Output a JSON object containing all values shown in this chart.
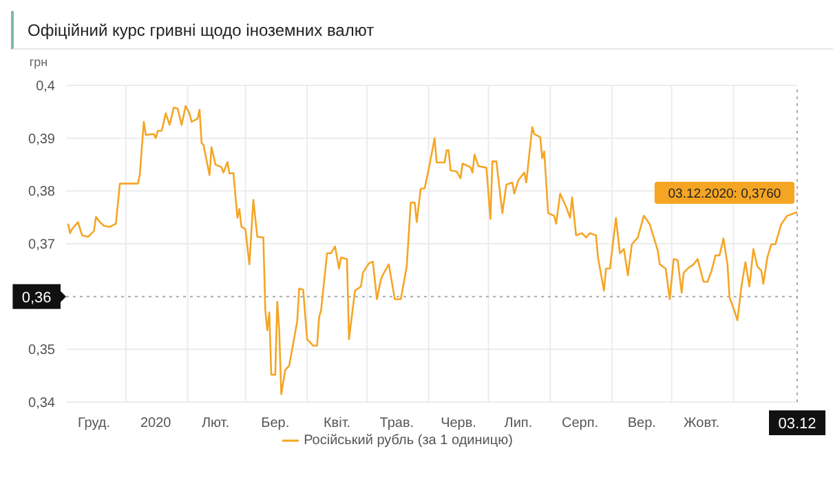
{
  "chart_data": {
    "type": "line",
    "title": "Офіційний курс гривні щодо іноземних валют",
    "ylabel": "грн",
    "legend": "bottom",
    "grid": true,
    "xlim": [
      "2019-12-02",
      "2020-12-03"
    ],
    "xticks": [
      {
        "value": "2019-12-16",
        "label": "Груд."
      },
      {
        "value": "2020-01-01",
        "label": null
      },
      {
        "value": "2020-01-16",
        "label": "2020"
      },
      {
        "value": "2020-02-01",
        "label": null
      },
      {
        "value": "2020-02-15",
        "label": "Лют."
      },
      {
        "value": "2020-03-01",
        "label": null
      },
      {
        "value": "2020-03-16",
        "label": "Бер."
      },
      {
        "value": "2020-04-01",
        "label": null
      },
      {
        "value": "2020-04-16",
        "label": "Квіт."
      },
      {
        "value": "2020-05-01",
        "label": null
      },
      {
        "value": "2020-05-16",
        "label": "Трав."
      },
      {
        "value": "2020-06-01",
        "label": null
      },
      {
        "value": "2020-06-16",
        "label": "Черв."
      },
      {
        "value": "2020-07-01",
        "label": null
      },
      {
        "value": "2020-07-16",
        "label": "Лип."
      },
      {
        "value": "2020-08-01",
        "label": null
      },
      {
        "value": "2020-08-16",
        "label": "Серп."
      },
      {
        "value": "2020-09-01",
        "label": null
      },
      {
        "value": "2020-09-16",
        "label": "Вер."
      },
      {
        "value": "2020-10-01",
        "label": null
      },
      {
        "value": "2020-10-16",
        "label": "Жовт."
      },
      {
        "value": "2020-11-01",
        "label": null
      },
      {
        "value": "2020-12-03",
        "label": "03.12"
      }
    ],
    "ylim": [
      0.34,
      0.4
    ],
    "yticks": [
      {
        "value": 0.34,
        "label": "0,34"
      },
      {
        "value": 0.35,
        "label": "0,35"
      },
      {
        "value": 0.37,
        "label": "0,37"
      },
      {
        "value": 0.38,
        "label": "0,38"
      },
      {
        "value": 0.39,
        "label": "0,39"
      },
      {
        "value": 0.4,
        "label": "0,4"
      }
    ],
    "ref_lines": [
      {
        "axis": "y",
        "value": 0.36,
        "label": "0,36",
        "line_style": "dotted"
      },
      {
        "axis": "x",
        "value": "2020-12-03",
        "line_style": "dotted"
      }
    ],
    "annotations": [
      {
        "text": "03.12.2020: 0,3760",
        "x": "2020-12-03",
        "y": 0.376
      }
    ],
    "series": [
      {
        "name": "Російський рубль (за 1 одиницю)",
        "color": "#f5a524",
        "x": [
          "2019-12-03",
          "2019-12-04",
          "2019-12-05",
          "2019-12-08",
          "2019-12-10",
          "2019-12-13",
          "2019-12-16",
          "2019-12-17",
          "2019-12-19",
          "2019-12-21",
          "2019-12-24",
          "2019-12-27",
          "2019-12-29",
          "2020-01-07",
          "2020-01-08",
          "2020-01-10",
          "2020-01-11",
          "2020-01-15",
          "2020-01-16",
          "2020-01-17",
          "2020-01-19",
          "2020-01-21",
          "2020-01-23",
          "2020-01-25",
          "2020-01-27",
          "2020-01-29",
          "2020-01-31",
          "2020-02-02",
          "2020-02-03",
          "2020-02-06",
          "2020-02-07",
          "2020-02-08",
          "2020-02-09",
          "2020-02-12",
          "2020-02-13",
          "2020-02-15",
          "2020-02-18",
          "2020-02-19",
          "2020-02-21",
          "2020-02-22",
          "2020-02-24",
          "2020-02-26",
          "2020-02-27",
          "2020-02-28",
          "2020-03-01",
          "2020-03-03",
          "2020-03-05",
          "2020-03-07",
          "2020-03-10",
          "2020-03-11",
          "2020-03-12",
          "2020-03-13",
          "2020-03-14",
          "2020-03-16",
          "2020-03-17",
          "2020-03-18",
          "2020-03-19",
          "2020-03-21",
          "2020-03-23",
          "2020-03-27",
          "2020-03-28",
          "2020-03-30",
          "2020-04-01",
          "2020-04-04",
          "2020-04-06",
          "2020-04-07",
          "2020-04-08",
          "2020-04-11",
          "2020-04-13",
          "2020-04-15",
          "2020-04-17",
          "2020-04-18",
          "2020-04-21",
          "2020-04-22",
          "2020-04-25",
          "2020-04-28",
          "2020-04-29",
          "2020-05-02",
          "2020-05-04",
          "2020-05-06",
          "2020-05-08",
          "2020-05-09",
          "2020-05-12",
          "2020-05-15",
          "2020-05-18",
          "2020-05-21",
          "2020-05-23",
          "2020-05-25",
          "2020-05-26",
          "2020-05-28",
          "2020-05-30",
          "2020-06-01",
          "2020-06-04",
          "2020-06-05",
          "2020-06-09",
          "2020-06-10",
          "2020-06-11",
          "2020-06-12",
          "2020-06-15",
          "2020-06-17",
          "2020-06-18",
          "2020-06-22",
          "2020-06-23",
          "2020-06-24",
          "2020-06-26",
          "2020-06-30",
          "2020-07-02",
          "2020-07-03",
          "2020-07-05",
          "2020-07-08",
          "2020-07-10",
          "2020-07-13",
          "2020-07-14",
          "2020-07-16",
          "2020-07-19",
          "2020-07-20",
          "2020-07-23",
          "2020-07-24",
          "2020-07-27",
          "2020-07-28",
          "2020-07-29",
          "2020-07-31",
          "2020-08-03",
          "2020-08-04",
          "2020-08-06",
          "2020-08-09",
          "2020-08-11",
          "2020-08-12",
          "2020-08-14",
          "2020-08-17",
          "2020-08-19",
          "2020-08-21",
          "2020-08-24",
          "2020-08-25",
          "2020-08-28",
          "2020-08-29",
          "2020-08-31",
          "2020-09-03",
          "2020-09-05",
          "2020-09-07",
          "2020-09-09",
          "2020-09-11",
          "2020-09-14",
          "2020-09-17",
          "2020-09-20",
          "2020-09-24",
          "2020-09-25",
          "2020-09-28",
          "2020-09-30",
          "2020-10-02",
          "2020-10-04",
          "2020-10-06",
          "2020-10-07",
          "2020-10-09",
          "2020-10-12",
          "2020-10-14",
          "2020-10-17",
          "2020-10-19",
          "2020-10-21",
          "2020-10-23",
          "2020-10-25",
          "2020-10-27",
          "2020-10-29",
          "2020-10-30",
          "2020-11-01",
          "2020-11-03",
          "2020-11-05",
          "2020-11-07",
          "2020-11-09",
          "2020-11-11",
          "2020-11-13",
          "2020-11-15",
          "2020-11-16",
          "2020-11-18",
          "2020-11-20",
          "2020-11-22",
          "2020-11-25",
          "2020-11-28",
          "2020-12-03"
        ],
        "values": [
          0.3738,
          0.372,
          0.3728,
          0.3741,
          0.3716,
          0.3713,
          0.3724,
          0.3751,
          0.3741,
          0.3734,
          0.3732,
          0.3738,
          0.3814,
          0.3814,
          0.383,
          0.3931,
          0.3906,
          0.3908,
          0.39,
          0.3914,
          0.3914,
          0.3947,
          0.3925,
          0.3958,
          0.3956,
          0.3925,
          0.3961,
          0.3946,
          0.3931,
          0.3937,
          0.3954,
          0.3891,
          0.3887,
          0.383,
          0.3883,
          0.385,
          0.3845,
          0.3835,
          0.3855,
          0.3833,
          0.3834,
          0.3749,
          0.3766,
          0.3732,
          0.3728,
          0.3661,
          0.3783,
          0.3713,
          0.3712,
          0.3574,
          0.3536,
          0.357,
          0.3452,
          0.3452,
          0.359,
          0.3536,
          0.3415,
          0.3461,
          0.3469,
          0.3553,
          0.3615,
          0.3613,
          0.3519,
          0.3507,
          0.3507,
          0.3561,
          0.3574,
          0.3682,
          0.3682,
          0.3695,
          0.3653,
          0.3674,
          0.3671,
          0.3519,
          0.3611,
          0.3619,
          0.3645,
          0.3663,
          0.3666,
          0.3595,
          0.3632,
          0.3641,
          0.3661,
          0.3595,
          0.3595,
          0.3657,
          0.3778,
          0.3778,
          0.3741,
          0.3804,
          0.3805,
          0.3841,
          0.39,
          0.3854,
          0.3854,
          0.3877,
          0.3877,
          0.3839,
          0.3837,
          0.3824,
          0.3852,
          0.3845,
          0.3835,
          0.3869,
          0.3847,
          0.3844,
          0.3747,
          0.3856,
          0.3856,
          0.3758,
          0.3812,
          0.3816,
          0.3795,
          0.382,
          0.3835,
          0.3816,
          0.3921,
          0.3908,
          0.3902,
          0.3862,
          0.3875,
          0.3758,
          0.3753,
          0.3738,
          0.3795,
          0.377,
          0.3749,
          0.3788,
          0.3716,
          0.372,
          0.3712,
          0.372,
          0.3716,
          0.3674,
          0.3611,
          0.3653,
          0.3653,
          0.3749,
          0.3682,
          0.369,
          0.364,
          0.3699,
          0.3712,
          0.3753,
          0.3737,
          0.3687,
          0.3661,
          0.3653,
          0.3595,
          0.3671,
          0.3669,
          0.3607,
          0.3645,
          0.3653,
          0.3661,
          0.3671,
          0.3628,
          0.3628,
          0.3649,
          0.3678,
          0.3678,
          0.371,
          0.3661,
          0.3599,
          0.3578,
          0.3555,
          0.3619,
          0.3665,
          0.3619,
          0.369,
          0.3657,
          0.3649,
          0.3624,
          0.3674,
          0.3699,
          0.3699,
          0.3737,
          0.3753,
          0.376
        ]
      }
    ]
  }
}
